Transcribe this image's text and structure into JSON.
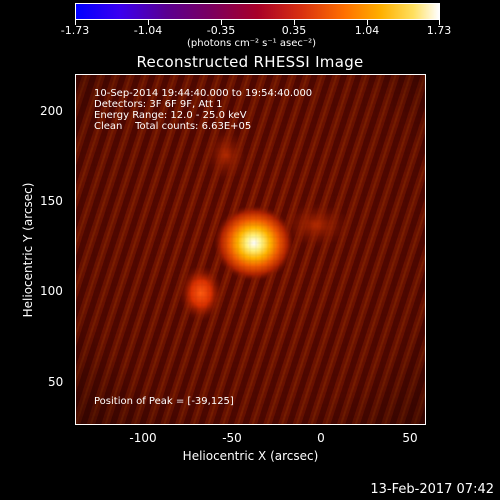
{
  "colorbar": {
    "labels": [
      "-1.73",
      "-1.04",
      "-0.35",
      "0.35",
      "1.04",
      "1.73"
    ],
    "unit": "(photons cm⁻² s⁻¹ asec⁻²)"
  },
  "title": "Reconstructed RHESSI Image",
  "info": {
    "time_range": "10-Sep-2014 19:44:40.000 to 19:54:40.000",
    "detectors": "Detectors: 3F 6F 9F, Att 1",
    "energy": "Energy Range: 12.0 - 25.0 keV",
    "method": "Clean    Total counts: 6.63E+05",
    "peak": "Position of Peak = [-39,125]"
  },
  "axes": {
    "xlabel": "Heliocentric X (arcsec)",
    "ylabel": "Heliocentric Y (arcsec)",
    "xticks": [
      "-100",
      "-50",
      "0",
      "50"
    ],
    "yticks": [
      "200",
      "150",
      "100",
      "50"
    ],
    "xrange": [
      -138,
      58
    ],
    "yrange": [
      27,
      223
    ]
  },
  "image": {
    "colormap": "red-temperature",
    "sources": [
      {
        "x": -39,
        "y": 125,
        "label": "peak"
      },
      {
        "x": -67,
        "y": 100,
        "label": "secondary"
      }
    ]
  },
  "footer": "13-Feb-2017 07:42"
}
